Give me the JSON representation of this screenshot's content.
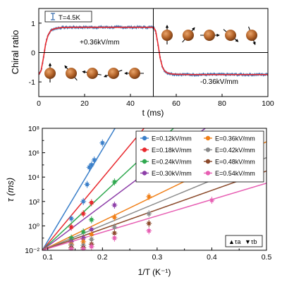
{
  "chart_data": [
    {
      "type": "line",
      "xlabel": "t (ms)",
      "ylabel": "Chiral ratio",
      "xlim": [
        0,
        100
      ],
      "ylim": [
        -1.5,
        1.5
      ],
      "xticks": [
        "0",
        "20",
        "40",
        "60",
        "80",
        "100"
      ],
      "yticks": [
        "-1",
        "0",
        "1"
      ],
      "grid": false,
      "legend": {
        "placement": "top-left",
        "label": "T=4.5K"
      },
      "annotations": {
        "positive_field": "+0.36kV/mm",
        "negative_field": "-0.36kV/mm"
      },
      "series": [
        {
          "name": "T=4.5K",
          "color": "#3a6fb0",
          "x": [
            0,
            1,
            2,
            3,
            4,
            5,
            6,
            8,
            10,
            15,
            20,
            30,
            40,
            49.9,
            50,
            51,
            52,
            53,
            54,
            55,
            56,
            58,
            60,
            65,
            70,
            80,
            90,
            100
          ],
          "y": [
            -0.75,
            -0.62,
            -0.2,
            0.3,
            0.58,
            0.72,
            0.79,
            0.83,
            0.85,
            0.86,
            0.86,
            0.86,
            0.86,
            0.86,
            0.86,
            0.74,
            0.3,
            -0.2,
            -0.5,
            -0.63,
            -0.69,
            -0.73,
            -0.74,
            -0.75,
            -0.75,
            -0.75,
            -0.75,
            -0.75
          ]
        },
        {
          "name": "",
          "color": "#e8282d",
          "x": [
            0,
            1,
            2,
            3,
            4,
            5,
            6,
            8,
            10,
            15,
            20,
            30,
            40,
            50,
            51,
            52,
            53,
            54,
            55,
            56,
            58,
            60,
            65,
            70,
            80,
            90,
            100
          ],
          "y": [
            -0.75,
            -0.62,
            -0.2,
            0.3,
            0.58,
            0.72,
            0.79,
            0.83,
            0.85,
            0.86,
            0.86,
            0.86,
            0.86,
            0.86,
            0.74,
            0.3,
            -0.2,
            -0.5,
            -0.63,
            -0.69,
            -0.73,
            -0.74,
            -0.75,
            -0.75,
            -0.75,
            -0.75,
            -0.75
          ]
        }
      ]
    },
    {
      "type": "scatter",
      "xlabel": "1/T (K⁻¹)",
      "ylabel": "τ (ms)",
      "xlim": [
        0.09,
        0.5
      ],
      "ylim_log10": [
        -2,
        8
      ],
      "scale_y": "log",
      "xticks": [
        "0.1",
        "0.2",
        "0.3",
        "0.4",
        "0.5"
      ],
      "yticks": [
        "10⁻²",
        "10⁰",
        "10²",
        "10⁴",
        "10⁶",
        "10⁸"
      ],
      "grid": false,
      "legend": {
        "placement": "top-right"
      },
      "marker_legend": {
        "tau_a": "▲τa",
        "tau_b": "▼τb"
      },
      "series": [
        {
          "name": "E=0.12kV/mm",
          "color": "#3a7fc9",
          "line": [
            [
              0.09,
              -2
            ],
            [
              0.223,
              8
            ]
          ],
          "points": [
            [
              0.143,
              0.6
            ],
            [
              0.165,
              2.0
            ],
            [
              0.172,
              3.4
            ],
            [
              0.176,
              4.8
            ],
            [
              0.18,
              5.0
            ],
            [
              0.185,
              5.4
            ],
            [
              0.2,
              6.8
            ]
          ]
        },
        {
          "name": "E=0.18kV/mm",
          "color": "#e8282d",
          "line": [
            [
              0.09,
              -2
            ],
            [
              0.276,
              8
            ]
          ],
          "points": [
            [
              0.143,
              -0.1
            ],
            [
              0.165,
              1.0
            ],
            [
              0.18,
              1.9
            ]
          ]
        },
        {
          "name": "E=0.24kV/mm",
          "color": "#2fa84f",
          "line": [
            [
              0.09,
              -2
            ],
            [
              0.33,
              8
            ]
          ],
          "points": [
            [
              0.143,
              -1.0
            ],
            [
              0.165,
              -0.5
            ],
            [
              0.18,
              0.5
            ],
            [
              0.222,
              3.6
            ]
          ]
        },
        {
          "name": "E=0.30kV/mm",
          "color": "#8d3ea8",
          "line": [
            [
              0.09,
              -2
            ],
            [
              0.388,
              8
            ]
          ],
          "points": [
            [
              0.143,
              -1.3
            ],
            [
              0.165,
              -1.0
            ],
            [
              0.18,
              -0.3
            ],
            [
              0.222,
              1.7
            ]
          ]
        },
        {
          "name": "E=0.36kV/mm",
          "color": "#f07f17",
          "line": [
            [
              0.09,
              -2
            ],
            [
              0.5,
              6.9
            ]
          ],
          "points": [
            [
              0.143,
              -1.5
            ],
            [
              0.165,
              -1.3
            ],
            [
              0.18,
              -0.7
            ],
            [
              0.222,
              0.7
            ],
            [
              0.285,
              2.4
            ]
          ]
        },
        {
          "name": "E=0.42kV/mm",
          "color": "#8a8a8a",
          "line": [
            [
              0.09,
              -2
            ],
            [
              0.5,
              5.6
            ]
          ],
          "points": [
            [
              0.143,
              -1.6
            ],
            [
              0.165,
              -1.6
            ],
            [
              0.18,
              -1.1
            ],
            [
              0.222,
              -0.1
            ],
            [
              0.285,
              1.0
            ]
          ]
        },
        {
          "name": "E=0.48kV/mm",
          "color": "#8b4a2b",
          "line": [
            [
              0.09,
              -2
            ],
            [
              0.5,
              4.5
            ]
          ],
          "points": [
            [
              0.143,
              -1.8
            ],
            [
              0.165,
              -1.8
            ],
            [
              0.18,
              -1.5
            ],
            [
              0.222,
              -0.6
            ],
            [
              0.285,
              0.2
            ]
          ]
        },
        {
          "name": "E=0.54kV/mm",
          "color": "#e75fb3",
          "line": [
            [
              0.09,
              -2
            ],
            [
              0.5,
              3.5
            ]
          ],
          "points": [
            [
              0.143,
              -1.9
            ],
            [
              0.165,
              -1.9
            ],
            [
              0.18,
              -1.7
            ],
            [
              0.222,
              -1.0
            ],
            [
              0.285,
              -0.4
            ],
            [
              0.4,
              2.1
            ]
          ]
        }
      ]
    }
  ]
}
